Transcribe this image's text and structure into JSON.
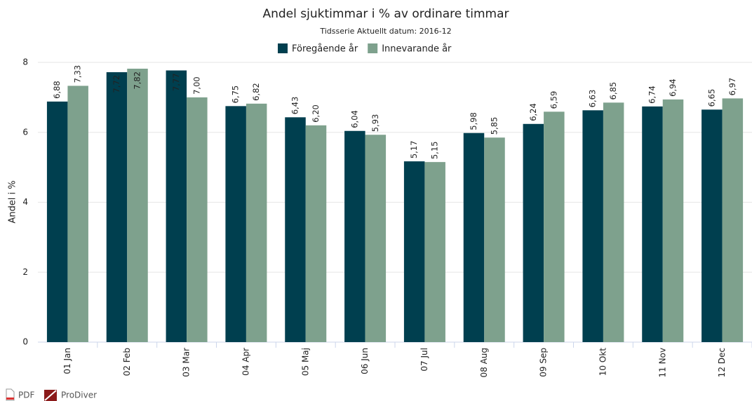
{
  "chart_data": {
    "type": "bar",
    "title": "Andel sjuktimmar i % av ordinare timmar",
    "subtitle": "Tidsserie Aktuellt datum: 2016-12",
    "y_axis_label": "Andel i %",
    "categories": [
      "01 Jan",
      "02 Feb",
      "03 Mar",
      "04 Apr",
      "05 Maj",
      "06 Jun",
      "07 Jul",
      "08 Aug",
      "09 Sep",
      "10 Okt",
      "11 Nov",
      "12 Dec"
    ],
    "series": [
      {
        "name": "Föregående år",
        "color": "#003f4f",
        "values": [
          6.88,
          7.72,
          7.77,
          6.75,
          6.43,
          6.04,
          5.17,
          5.98,
          6.24,
          6.63,
          6.74,
          6.65
        ],
        "value_labels": [
          "6,88",
          "7,72",
          "7,77",
          "6,75",
          "6,43",
          "6,04",
          "5,17",
          "5,98",
          "6,24",
          "6,63",
          "6,74",
          "6,65"
        ]
      },
      {
        "name": "Innevarande år",
        "color": "#7ea18d",
        "values": [
          7.33,
          7.82,
          7.0,
          6.82,
          6.2,
          5.93,
          5.15,
          5.85,
          6.59,
          6.85,
          6.94,
          6.97
        ],
        "value_labels": [
          "7,33",
          "7,82",
          "7,00",
          "6,82",
          "6,20",
          "5,93",
          "5,15",
          "5,85",
          "6,59",
          "6,85",
          "6,94",
          "6,97"
        ]
      }
    ],
    "ylim": [
      0,
      8
    ],
    "yticks": [
      0,
      2,
      4,
      6,
      8
    ],
    "grid": true
  },
  "footer": {
    "links": [
      "PDF",
      "ProDiver"
    ]
  }
}
